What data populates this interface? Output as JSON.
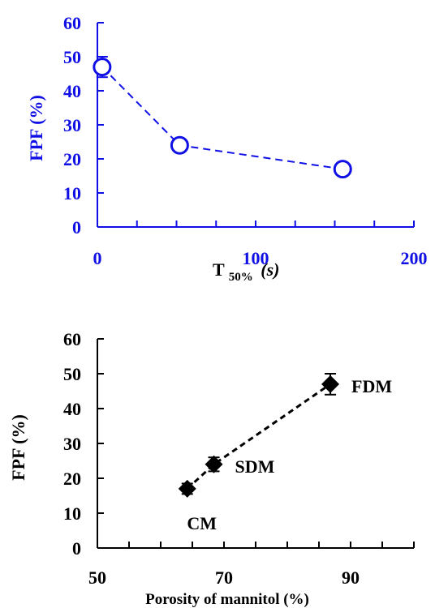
{
  "chart_data": [
    {
      "type": "scatter",
      "color": "#1010e6",
      "marker": "open-circle",
      "line_style": "dashed",
      "xlabel_main": "T",
      "xlabel_sub": "50%",
      "xlabel_unit": "(s)",
      "ylabel": "FPF  (%)",
      "xlim": [
        0,
        200
      ],
      "ylim": [
        0,
        60
      ],
      "x_ticks": [
        0,
        100,
        200
      ],
      "y_ticks": [
        0,
        10,
        20,
        30,
        40,
        50,
        60
      ],
      "x_tick_labels": [
        "0",
        "100",
        "200"
      ],
      "y_tick_labels": [
        "0",
        "10",
        "20",
        "30",
        "40",
        "50",
        "60"
      ],
      "x_minor_step": 25,
      "points": [
        {
          "x": 3,
          "y": 47,
          "err": 3
        },
        {
          "x": 52,
          "y": 24,
          "err": 0
        },
        {
          "x": 155,
          "y": 17,
          "err": 0
        }
      ]
    },
    {
      "type": "scatter",
      "color": "#000000",
      "marker": "filled-diamond",
      "line_style": "dashed",
      "xlabel": "Porosity of mannitol (%)",
      "ylabel": "FPF  (%)",
      "xlim": [
        50,
        100
      ],
      "ylim": [
        0,
        60
      ],
      "x_ticks": [
        50,
        70,
        90
      ],
      "y_ticks": [
        0,
        10,
        20,
        30,
        40,
        50,
        60
      ],
      "x_tick_labels": [
        "50",
        "70",
        "90"
      ],
      "y_tick_labels": [
        "0",
        "10",
        "20",
        "30",
        "40",
        "50",
        "60"
      ],
      "x_minor_step": 5,
      "points": [
        {
          "x": 64.2,
          "y": 17,
          "err": 1.5,
          "label": "CM"
        },
        {
          "x": 68.4,
          "y": 24,
          "err": 2,
          "label": "SDM"
        },
        {
          "x": 86.8,
          "y": 47,
          "err": 3,
          "label": "FDM"
        }
      ]
    }
  ]
}
